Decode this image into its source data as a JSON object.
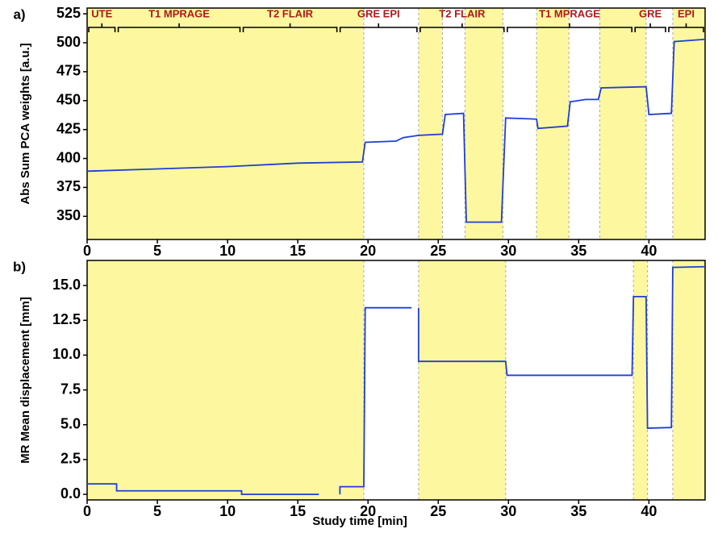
{
  "chart_data": [
    {
      "type": "line",
      "panel_label": "a)",
      "ylabel": "Abs Sum PCA weights [a.u.]",
      "xlim": [
        0,
        44
      ],
      "xticks": [
        0,
        5,
        10,
        15,
        20,
        25,
        30,
        35,
        40
      ],
      "ylim": [
        330,
        530
      ],
      "yticks": [
        350,
        375,
        400,
        425,
        450,
        475,
        500,
        525
      ],
      "shade_color": "#fdf79f",
      "shaded": [
        [
          0,
          19.7
        ],
        [
          23.6,
          25.3
        ],
        [
          26.9,
          29.6
        ],
        [
          32,
          34.3
        ],
        [
          36.5,
          39.8
        ],
        [
          41.7,
          44
        ]
      ],
      "annotations": [
        {
          "text": "UTE",
          "start": 0,
          "end": 2.1
        },
        {
          "text": "T1 MPRAGE",
          "start": 2.1,
          "end": 11
        },
        {
          "text": "T2 FLAIR",
          "start": 11,
          "end": 17.9
        },
        {
          "text": "GRE EPI",
          "start": 17.9,
          "end": 23.6
        },
        {
          "text": "T2 FLAIR",
          "start": 23.6,
          "end": 29.8
        },
        {
          "text": "T1 MPRAGE",
          "start": 29.8,
          "end": 38.9
        },
        {
          "text": "GRE",
          "start": 38.9,
          "end": 41.3
        },
        {
          "text": "EPI",
          "start": 41.3,
          "end": 44
        }
      ],
      "series": [
        {
          "color": "#1f3fd6",
          "x": [
            0,
            5,
            10,
            15,
            19.6,
            19.8,
            22,
            22.5,
            23.6,
            25.3,
            25.5,
            26.8,
            27,
            29.5,
            29.8,
            32,
            32.1,
            34.2,
            34.4,
            35.5,
            36.4,
            36.6,
            39.8,
            40,
            41.6,
            41.8,
            44
          ],
          "values": [
            389,
            391,
            393,
            396,
            397,
            414,
            415,
            418,
            420,
            421,
            438,
            439,
            345,
            345,
            435,
            434,
            426,
            428,
            449,
            451,
            451,
            461,
            462,
            438,
            439,
            501,
            503
          ]
        }
      ]
    },
    {
      "type": "line",
      "panel_label": "b)",
      "ylabel": "MR Mean displacement [mm]",
      "xlabel": "Study time [min]",
      "xlim": [
        0,
        44
      ],
      "xticks": [
        0,
        5,
        10,
        15,
        20,
        25,
        30,
        35,
        40
      ],
      "ylim": [
        -0.4,
        16.8
      ],
      "yticks": [
        {
          "value": 0,
          "label": "0.0"
        },
        2.5,
        {
          "value": 5,
          "label": "5.0"
        },
        7.5,
        {
          "value": 10,
          "label": "10.0"
        },
        12.5,
        {
          "value": 15,
          "label": "15.0"
        }
      ],
      "shade_color": "#fdf79f",
      "shaded": [
        [
          0,
          19.7
        ],
        [
          23.6,
          29.8
        ],
        [
          38.9,
          39.9
        ],
        [
          41.7,
          44
        ]
      ],
      "series": [
        {
          "color": "#1f3fd6",
          "x": [
            0,
            2.1,
            2.1,
            11,
            11,
            16.5,
            null,
            18,
            18,
            19.7,
            19.8,
            23.1,
            null,
            23.6,
            23.6,
            29.8,
            29.9,
            38.8,
            38.9,
            39.8,
            39.9,
            41.6,
            41.7,
            44
          ],
          "values": [
            0.75,
            0.75,
            0.25,
            0.25,
            0,
            0,
            null,
            0,
            0.55,
            0.55,
            13.4,
            13.4,
            null,
            13.4,
            9.55,
            9.55,
            8.55,
            8.55,
            14.2,
            14.2,
            4.75,
            4.8,
            16.3,
            16.35
          ]
        }
      ]
    }
  ]
}
